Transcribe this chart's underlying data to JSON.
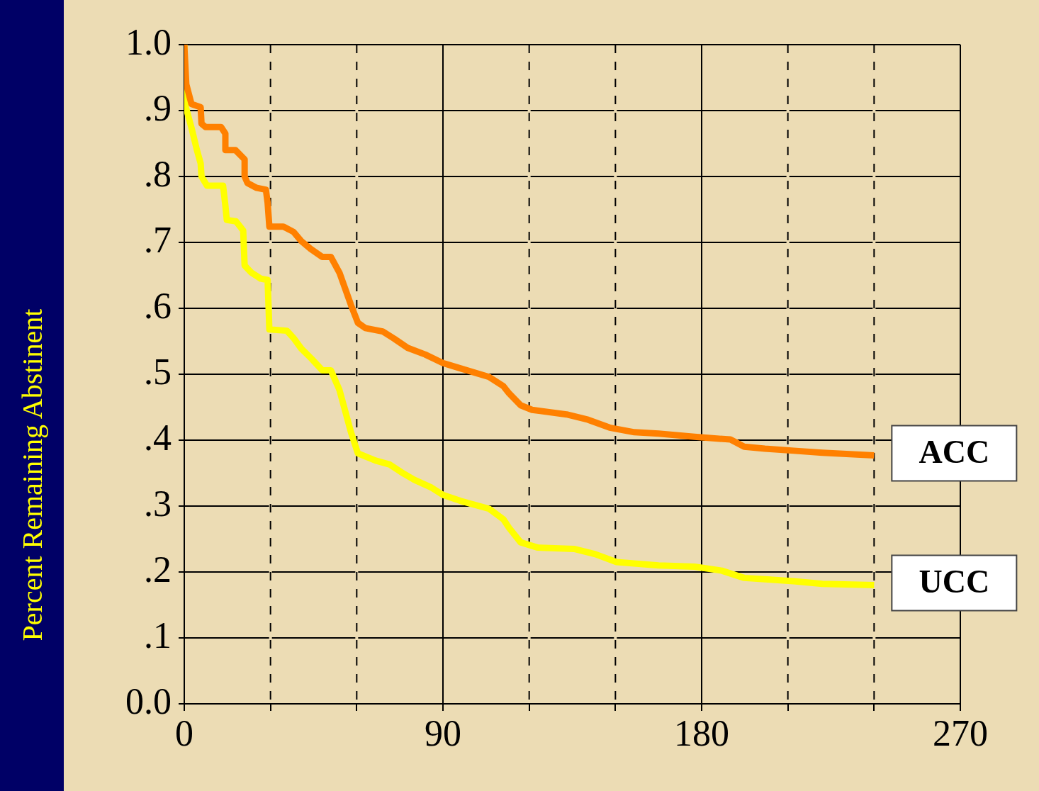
{
  "chart_data": {
    "type": "line",
    "ylabel": "Percent Remaining Abstinent",
    "xlim": [
      0,
      270
    ],
    "xticks": [
      0,
      {
        "value": 30,
        "label": null
      },
      {
        "value": 60,
        "label": null
      },
      90,
      {
        "value": 120,
        "label": null
      },
      {
        "value": 150,
        "label": null
      },
      180,
      {
        "value": 210,
        "label": null
      },
      {
        "value": 240,
        "label": null
      },
      270
    ],
    "ylim": [
      0,
      1
    ],
    "yticks": [
      {
        "value": 0,
        "label": "0.0"
      },
      {
        "value": 0.1,
        "label": ".1"
      },
      {
        "value": 0.2,
        "label": ".2"
      },
      {
        "value": 0.3,
        "label": ".3"
      },
      {
        "value": 0.4,
        "label": ".4"
      },
      {
        "value": 0.5,
        "label": ".5"
      },
      {
        "value": 0.6,
        "label": ".6"
      },
      {
        "value": 0.7,
        "label": ".7"
      },
      {
        "value": 0.8,
        "label": ".8"
      },
      {
        "value": 0.9,
        "label": ".9"
      },
      {
        "value": 1,
        "label": "1.0"
      }
    ],
    "grid": true,
    "legend": false,
    "marker": "none",
    "line_style": "solid",
    "series": [
      {
        "name": "ACC",
        "color": "#ff8000",
        "x": [
          0,
          0.7,
          2.5,
          5.7,
          6,
          7.4,
          12.8,
          14.3,
          14.3,
          17.8,
          21,
          21,
          22,
          25,
          28.4,
          29,
          29.6,
          34.5,
          38,
          40.7,
          44,
          48,
          51,
          54,
          58,
          60.4,
          63,
          69,
          73,
          77.7,
          83.8,
          90,
          96,
          106,
          111,
          113,
          117,
          121,
          133,
          140.5,
          148,
          156.6,
          165,
          177.5,
          190,
          194.8,
          202,
          212,
          222,
          240
        ],
        "values": [
          1,
          0.94,
          0.91,
          0.905,
          0.88,
          0.875,
          0.875,
          0.865,
          0.84,
          0.84,
          0.826,
          0.8,
          0.79,
          0.783,
          0.78,
          0.76,
          0.724,
          0.724,
          0.716,
          0.702,
          0.69,
          0.678,
          0.678,
          0.654,
          0.605,
          0.578,
          0.57,
          0.565,
          0.554,
          0.54,
          0.53,
          0.517,
          0.509,
          0.496,
          0.482,
          0.471,
          0.453,
          0.446,
          0.439,
          0.431,
          0.419,
          0.412,
          0.41,
          0.405,
          0.401,
          0.39,
          0.387,
          0.384,
          0.381,
          0.377
        ]
      },
      {
        "name": "UCC",
        "color": "#ffff00",
        "x": [
          0,
          0.5,
          2.5,
          4.4,
          5.7,
          6,
          7.9,
          13.5,
          14.3,
          14.8,
          18,
          20.5,
          21,
          23.4,
          26.6,
          29,
          29.6,
          35.7,
          38.2,
          40.7,
          44.4,
          48,
          51,
          54,
          58,
          60.4,
          66.6,
          71.5,
          76.4,
          80,
          86,
          90,
          96,
          106,
          111,
          113,
          117,
          123,
          135.6,
          143,
          150.4,
          165,
          177.5,
          187,
          194.8,
          202,
          212,
          222,
          240
        ],
        "values": [
          1,
          0.906,
          0.874,
          0.84,
          0.82,
          0.8,
          0.786,
          0.786,
          0.756,
          0.734,
          0.732,
          0.718,
          0.665,
          0.654,
          0.645,
          0.643,
          0.568,
          0.566,
          0.554,
          0.539,
          0.523,
          0.506,
          0.506,
          0.476,
          0.412,
          0.38,
          0.369,
          0.363,
          0.349,
          0.34,
          0.328,
          0.317,
          0.308,
          0.296,
          0.28,
          0.267,
          0.245,
          0.237,
          0.235,
          0.227,
          0.215,
          0.21,
          0.208,
          0.202,
          0.191,
          0.189,
          0.186,
          0.182,
          0.18
        ]
      }
    ]
  }
}
